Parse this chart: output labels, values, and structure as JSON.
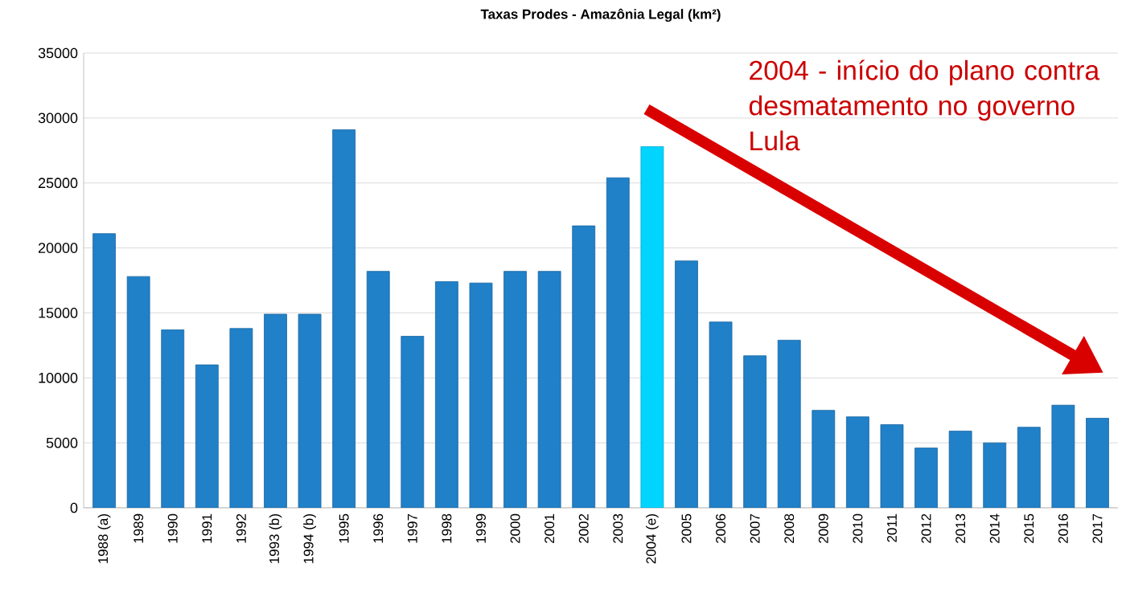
{
  "chart_data": {
    "type": "bar",
    "title": "Taxas Prodes - Amazônia Legal (km²)",
    "categories": [
      "1988 (a)",
      "1989",
      "1990",
      "1991",
      "1992",
      "1993 (b)",
      "1994 (b)",
      "1995",
      "1996",
      "1997",
      "1998",
      "1999",
      "2000",
      "2001",
      "2002",
      "2003",
      "2004 (e)",
      "2005",
      "2006",
      "2007",
      "2008",
      "2009",
      "2010",
      "2011",
      "2012",
      "2013",
      "2014",
      "2015",
      "2016",
      "2017"
    ],
    "values": [
      21100,
      17800,
      13700,
      11000,
      13800,
      14900,
      14900,
      29100,
      18200,
      13200,
      17400,
      17300,
      18200,
      18200,
      21700,
      25400,
      27800,
      19000,
      14300,
      11700,
      12900,
      7500,
      7000,
      6400,
      4600,
      5900,
      5000,
      6200,
      7900,
      6900
    ],
    "colors": [
      "#2080c8",
      "#2080c8",
      "#2080c8",
      "#2080c8",
      "#2080c8",
      "#2080c8",
      "#2080c8",
      "#2080c8",
      "#2080c8",
      "#2080c8",
      "#2080c8",
      "#2080c8",
      "#2080c8",
      "#2080c8",
      "#2080c8",
      "#2080c8",
      "#00d4ff",
      "#2080c8",
      "#2080c8",
      "#2080c8",
      "#2080c8",
      "#2080c8",
      "#2080c8",
      "#2080c8",
      "#2080c8",
      "#2080c8",
      "#2080c8",
      "#2080c8",
      "#2080c8",
      "#2080c8"
    ],
    "ylim": [
      0,
      35000
    ],
    "yticks": [
      0,
      5000,
      10000,
      15000,
      20000,
      25000,
      30000,
      35000
    ],
    "grid": "y",
    "annotations": [
      "2004 - início do plano contra desmatamento no governo Lula"
    ]
  }
}
